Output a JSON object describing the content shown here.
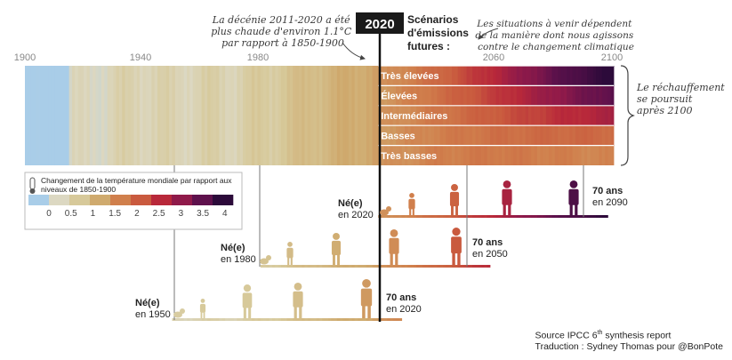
{
  "annotations": {
    "decade_note": [
      "La décénie 2011-2020 a été",
      "plus chaude d'environ 1.1°C",
      "par rapport à 1850-1900"
    ],
    "year_box": "2020",
    "scenarios_title": [
      "Scénarios",
      "d'émissions",
      "futures :"
    ],
    "future_note": [
      "Les situations à venir dépendent",
      "de la manière dont nous agissons",
      "contre le changement climatique"
    ],
    "warming_note": [
      "Le réchauffement",
      "se poursuit",
      "après 2100"
    ]
  },
  "legend": {
    "title_line1": "Changement de la température mondiale par rapport aux",
    "title_line2": "niveaux de 1850-1900",
    "ticks": [
      "0",
      "0.5",
      "1",
      "1.5",
      "2",
      "2.5",
      "3",
      "3.5",
      "4"
    ],
    "tick_values": [
      0,
      0.5,
      1,
      1.5,
      2,
      2.5,
      3,
      3.5,
      4
    ],
    "colors": [
      "#a9cde8",
      "#dcd8c2",
      "#d7c99a",
      "#cfaa6e",
      "#d07f4c",
      "#c95a3e",
      "#b8283a",
      "#8f1a4a",
      "#5e114c",
      "#2c0a3a"
    ]
  },
  "source": {
    "line1_pre": "Source IPCC 6",
    "line1_sup": "th",
    "line1_post": " synthesis report",
    "line2": "Traduction : Sydney Thomas pour @BonPote"
  },
  "chart_data": {
    "type": "heatmap",
    "title": "",
    "x_axis": {
      "ticks": [
        1900,
        1940,
        1980,
        2060,
        2100
      ],
      "range": [
        1900,
        2100
      ]
    },
    "historical": {
      "years": [
        1900,
        1910,
        1920,
        1930,
        1940,
        1950,
        1960,
        1970,
        1980,
        1990,
        2000,
        2010,
        2020
      ],
      "values": [
        0.1,
        0.15,
        0.2,
        0.3,
        0.35,
        0.3,
        0.35,
        0.35,
        0.45,
        0.6,
        0.8,
        0.95,
        1.15
      ]
    },
    "scenarios": [
      {
        "name": "Très élevées",
        "years": [
          2020,
          2040,
          2060,
          2080,
          2100
        ],
        "values": [
          1.2,
          1.8,
          2.6,
          3.5,
          4.4
        ]
      },
      {
        "name": "Élevées",
        "years": [
          2020,
          2040,
          2060,
          2080,
          2100
        ],
        "values": [
          1.2,
          1.7,
          2.3,
          3.0,
          3.6
        ]
      },
      {
        "name": "Intermédiaires",
        "years": [
          2020,
          2040,
          2060,
          2080,
          2100
        ],
        "values": [
          1.2,
          1.6,
          2.0,
          2.4,
          2.7
        ]
      },
      {
        "name": "Basses",
        "years": [
          2020,
          2040,
          2060,
          2080,
          2100
        ],
        "values": [
          1.2,
          1.5,
          1.7,
          1.8,
          1.8
        ]
      },
      {
        "name": "Très basses",
        "years": [
          2020,
          2040,
          2060,
          2080,
          2100
        ],
        "values": [
          1.2,
          1.5,
          1.6,
          1.5,
          1.4
        ]
      }
    ],
    "generations": [
      {
        "born_label": "Né(e)",
        "born_year": "en 1950",
        "age_label": "70 ans",
        "age_year": "en 2020"
      },
      {
        "born_label": "Né(e)",
        "born_year": "en 1980",
        "age_label": "70 ans",
        "age_year": "en 2050"
      },
      {
        "born_label": "Né(e)",
        "born_year": "en 2020",
        "age_label": "70 ans",
        "age_year": "en 2090"
      }
    ]
  }
}
